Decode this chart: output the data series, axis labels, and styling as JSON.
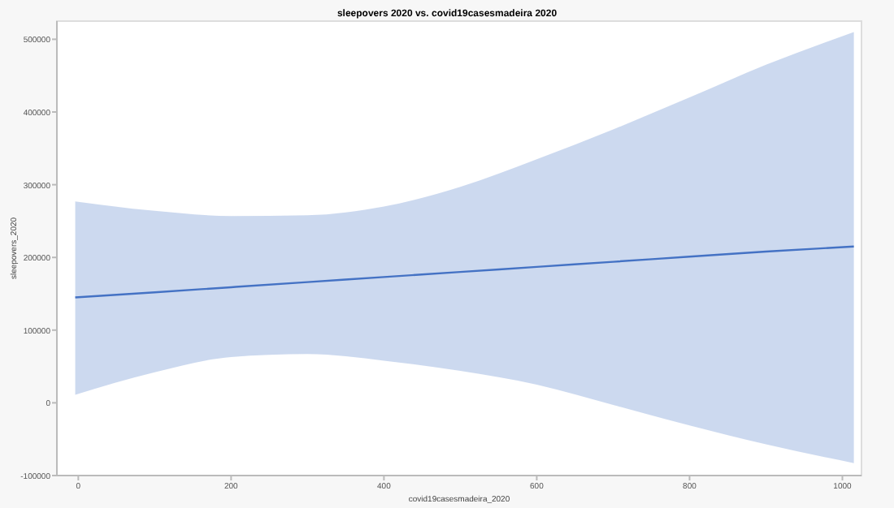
{
  "chart_data": {
    "type": "line",
    "title": "sleepovers 2020 vs. covid19casesmadeira 2020",
    "xlabel": "covid19casesmadeira_2020",
    "ylabel": "sleepovers_2020",
    "xlim": [
      -28,
      1025
    ],
    "ylim": [
      -100000,
      525000
    ],
    "xticks": [
      0,
      200,
      400,
      600,
      800,
      1000
    ],
    "yticks": [
      -100000,
      0,
      100000,
      200000,
      300000,
      400000,
      500000
    ],
    "series": [
      {
        "color": "#4472c4",
        "x": [
          -4,
          100,
          200,
          300,
          400,
          500,
          600,
          700,
          800,
          900,
          1015
        ],
        "values": [
          145000,
          152000,
          159000,
          166000,
          173000,
          180000,
          187000,
          194000,
          201000,
          208000,
          215000
        ],
        "lower": [
          11000,
          42000,
          63000,
          67000,
          58000,
          44000,
          25000,
          -3000,
          -31000,
          -57000,
          -83000
        ],
        "upper": [
          277000,
          264000,
          257000,
          258000,
          270000,
          297000,
          335000,
          376000,
          420000,
          465000,
          510000
        ]
      }
    ]
  }
}
